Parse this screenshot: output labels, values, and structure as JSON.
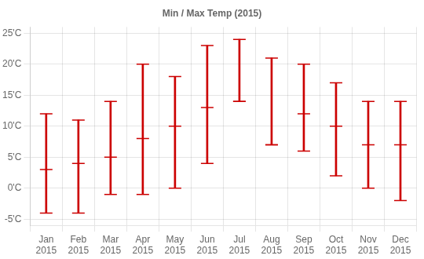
{
  "chart_data": {
    "type": "range",
    "title": "Min / Max Temp (2015)",
    "categories": [
      "Jan\n2015",
      "Feb\n2015",
      "Mar\n2015",
      "Apr\n2015",
      "May\n2015",
      "Jun\n2015",
      "Jul\n2015",
      "Aug\n2015",
      "Sep\n2015",
      "Oct\n2015",
      "Nov\n2015",
      "Dec\n2015"
    ],
    "min": [
      -4,
      -4,
      -1,
      -1,
      0,
      4,
      14,
      7,
      6,
      2,
      0,
      -2
    ],
    "max": [
      12,
      11,
      14,
      20,
      18,
      23,
      24,
      21,
      20,
      17,
      14,
      14
    ],
    "mid": [
      3,
      4,
      5,
      8,
      10,
      13,
      14,
      7,
      12,
      10,
      7,
      7
    ],
    "color": "#cc0000",
    "ylim": [
      -6,
      26
    ],
    "yticks": [
      {
        "value": -5,
        "label": "-5'C"
      },
      {
        "value": 0,
        "label": "0'C"
      },
      {
        "value": 5,
        "label": "5'C"
      },
      {
        "value": 10,
        "label": "10'C"
      },
      {
        "value": 15,
        "label": "15'C"
      },
      {
        "value": 20,
        "label": "20'C"
      },
      {
        "value": 25,
        "label": "25'C"
      }
    ],
    "grid": true
  }
}
